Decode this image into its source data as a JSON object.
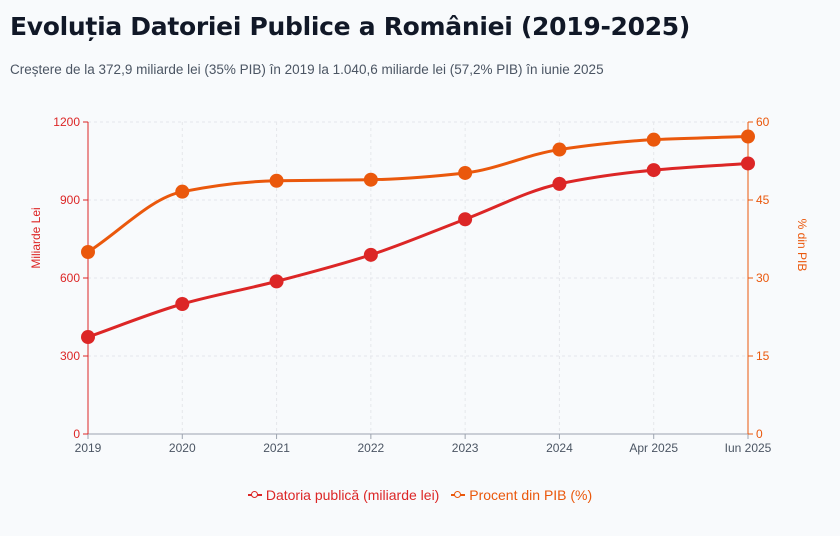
{
  "title": "Evoluția Datoriei Publice a României (2019-2025)",
  "subtitle": "Creștere de la 372,9 miliarde lei (35% PIB) în 2019 la 1.040,6 miliarde lei (57,2% PIB) în iunie 2025",
  "chart_data": {
    "type": "line",
    "categories": [
      "2019",
      "2020",
      "2021",
      "2022",
      "2023",
      "2024",
      "Apr 2025",
      "Iun 2025"
    ],
    "series": [
      {
        "name": "Datoria publică (miliarde lei)",
        "axis": "left",
        "color": "#dc2626",
        "values": [
          372.9,
          500,
          587,
          689,
          826,
          962,
          1015,
          1040.6
        ]
      },
      {
        "name": "Procent din PIB (%)",
        "axis": "right",
        "color": "#ea580c",
        "values": [
          35,
          46.6,
          48.7,
          48.9,
          50.2,
          54.7,
          56.6,
          57.2
        ]
      }
    ],
    "yleft": {
      "label": "Miliarde Lei",
      "ylim": [
        0,
        1200
      ],
      "ticks": [
        "0",
        "300",
        "600",
        "900",
        "1200"
      ]
    },
    "yright": {
      "label": "% din PIB",
      "ylim": [
        0,
        60
      ],
      "ticks": [
        "0",
        "15",
        "30",
        "45",
        "60"
      ]
    },
    "grid": true,
    "legend": "bottom"
  }
}
